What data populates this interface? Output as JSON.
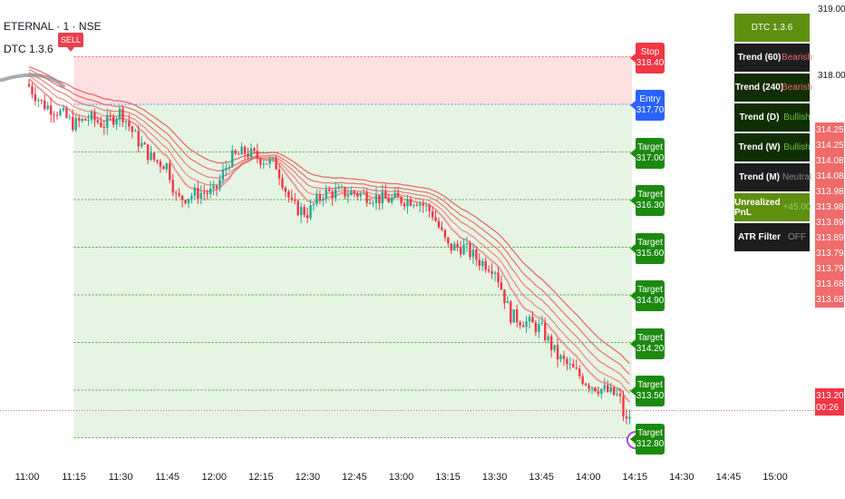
{
  "header": {
    "symbol_line": "ETERNAL · 1 · NSE",
    "indicator_line": "DTC 1.3.6"
  },
  "signal": {
    "sell_label": "SELL"
  },
  "levels": [
    {
      "name": "Stop",
      "price": "318.40",
      "value": 318.4,
      "color": "#f23645"
    },
    {
      "name": "Entry",
      "price": "317.70",
      "value": 317.7,
      "color": "#2962ff"
    },
    {
      "name": "Target",
      "price": "317.00",
      "value": 317.0,
      "color": "#1b8a0f"
    },
    {
      "name": "Target",
      "price": "316.30",
      "value": 316.3,
      "color": "#1b8a0f"
    },
    {
      "name": "Target",
      "price": "315.60",
      "value": 315.6,
      "color": "#1b8a0f"
    },
    {
      "name": "Target",
      "price": "314.90",
      "value": 314.9,
      "color": "#1b8a0f"
    },
    {
      "name": "Target",
      "price": "314.20",
      "value": 314.2,
      "color": "#1b8a0f"
    },
    {
      "name": "Target",
      "price": "313.50",
      "value": 313.5,
      "color": "#1b8a0f"
    },
    {
      "name": "Target",
      "price": "312.80",
      "value": 312.8,
      "color": "#1b8a0f"
    }
  ],
  "panel": {
    "title": "DTC 1.3.6",
    "rows": [
      {
        "key": "Trend (60)",
        "value": "Bearish",
        "color": "#f06b6b",
        "bg": "#1d1d1d"
      },
      {
        "key": "Trend (240)",
        "value": "Bearish",
        "color": "#f06b6b",
        "bg": "#112d04"
      },
      {
        "key": "Trend (D)",
        "value": "Bullish",
        "color": "#6cc04a",
        "bg": "#112d04"
      },
      {
        "key": "Trend (W)",
        "value": "Bullish",
        "color": "#6cc04a",
        "bg": "#112d04"
      },
      {
        "key": "Trend (M)",
        "value": "Neutral",
        "color": "#8a8a8a",
        "bg": "#1d1d1d"
      },
      {
        "key": "Unrealized PnL",
        "value": "+45.00",
        "color": "#8fd06a",
        "bg": "#5f8f0f"
      },
      {
        "key": "ATR Filter",
        "value": "OFF",
        "color": "#8a8a8a",
        "bg": "#1d1d1d"
      }
    ]
  },
  "y_axis": {
    "ticks": [
      "319.00",
      "318.00"
    ],
    "price_labels": [
      "314.25",
      "314.25",
      "314.08",
      "314.08",
      "313.98",
      "313.98",
      "313.89",
      "313.89",
      "313.79",
      "313.79",
      "313.68",
      "313.68"
    ],
    "last_price": "313.20",
    "countdown": "00:26"
  },
  "x_axis": {
    "ticks": [
      "11:00",
      "11:15",
      "11:30",
      "11:45",
      "12:00",
      "12:15",
      "12:30",
      "12:45",
      "13:00",
      "13:15",
      "13:30",
      "13:45",
      "14:00",
      "14:15",
      "14:30",
      "14:45",
      "15:00"
    ]
  },
  "colors": {
    "stop_zone": "#fde0e0",
    "target_zone": "#e6f4e3",
    "ribbon": "#f06b6b",
    "up": "#22ab94",
    "down": "#f23645"
  },
  "chart_data": {
    "type": "candlestick",
    "x_range": [
      "11:00",
      "15:00"
    ],
    "ylim": [
      312.5,
      319.2
    ],
    "close_path": [
      {
        "t": "11:00",
        "v": 318.0
      },
      {
        "t": "11:05",
        "v": 317.7
      },
      {
        "t": "11:10",
        "v": 317.6
      },
      {
        "t": "11:15",
        "v": 317.4
      },
      {
        "t": "11:20",
        "v": 317.5
      },
      {
        "t": "11:25",
        "v": 317.4
      },
      {
        "t": "11:30",
        "v": 317.6
      },
      {
        "t": "11:35",
        "v": 317.2
      },
      {
        "t": "11:40",
        "v": 316.9
      },
      {
        "t": "11:45",
        "v": 316.8
      },
      {
        "t": "11:48",
        "v": 316.3
      },
      {
        "t": "11:55",
        "v": 316.4
      },
      {
        "t": "12:00",
        "v": 316.4
      },
      {
        "t": "12:05",
        "v": 316.9
      },
      {
        "t": "12:10",
        "v": 317.0
      },
      {
        "t": "12:15",
        "v": 316.9
      },
      {
        "t": "12:20",
        "v": 316.8
      },
      {
        "t": "12:25",
        "v": 316.2
      },
      {
        "t": "12:30",
        "v": 316.1
      },
      {
        "t": "12:35",
        "v": 316.4
      },
      {
        "t": "12:45",
        "v": 316.4
      },
      {
        "t": "12:55",
        "v": 316.3
      },
      {
        "t": "13:05",
        "v": 316.3
      },
      {
        "t": "13:10",
        "v": 316.1
      },
      {
        "t": "13:15",
        "v": 315.6
      },
      {
        "t": "13:20",
        "v": 315.6
      },
      {
        "t": "13:25",
        "v": 315.4
      },
      {
        "t": "13:30",
        "v": 315.3
      },
      {
        "t": "13:35",
        "v": 314.6
      },
      {
        "t": "13:40",
        "v": 314.5
      },
      {
        "t": "13:45",
        "v": 314.4
      },
      {
        "t": "13:50",
        "v": 314.0
      },
      {
        "t": "13:55",
        "v": 313.8
      },
      {
        "t": "14:00",
        "v": 313.6
      },
      {
        "t": "14:05",
        "v": 313.5
      },
      {
        "t": "14:10",
        "v": 313.4
      },
      {
        "t": "14:12",
        "v": 313.0
      },
      {
        "t": "14:14",
        "v": 313.2
      }
    ]
  }
}
